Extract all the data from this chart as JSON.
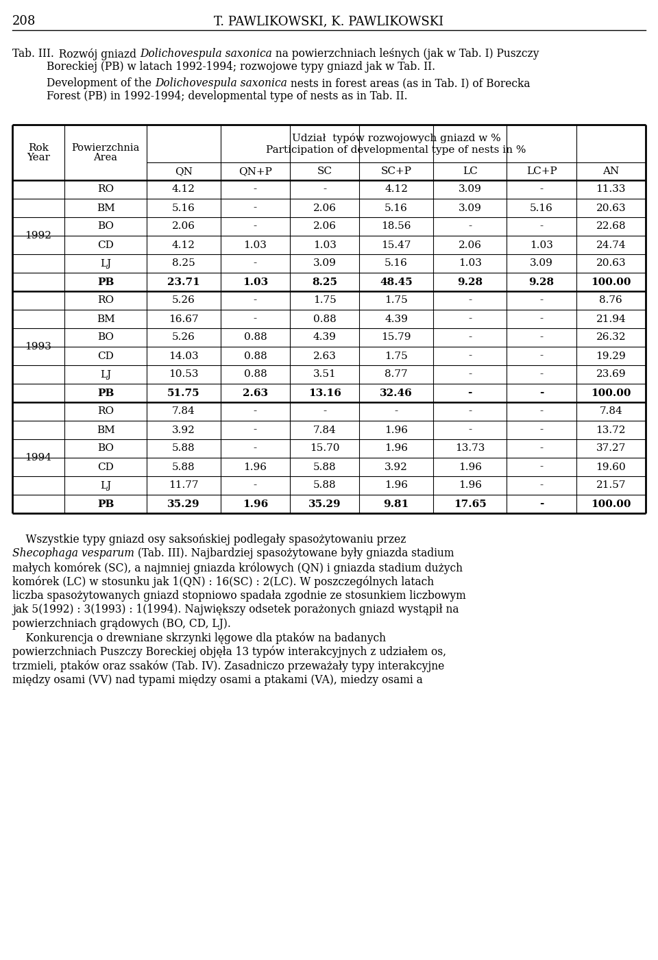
{
  "page_number": "208",
  "header": "T. PAWLIKOWSKI, K. PAWLIKOWSKI",
  "col_headers": [
    "QN",
    "QN+P",
    "SC",
    "SC+P",
    "LC",
    "LC+P",
    "AN"
  ],
  "years": [
    "1992",
    "1993",
    "1994"
  ],
  "areas": [
    "RO",
    "BM",
    "BO",
    "CD",
    "LJ",
    "PB"
  ],
  "data": {
    "1992": {
      "RO": [
        "4.12",
        "-",
        "-",
        "4.12",
        "3.09",
        "-",
        "11.33"
      ],
      "BM": [
        "5.16",
        "-",
        "2.06",
        "5.16",
        "3.09",
        "5.16",
        "20.63"
      ],
      "BO": [
        "2.06",
        "-",
        "2.06",
        "18.56",
        "-",
        "-",
        "22.68"
      ],
      "CD": [
        "4.12",
        "1.03",
        "1.03",
        "15.47",
        "2.06",
        "1.03",
        "24.74"
      ],
      "LJ": [
        "8.25",
        "-",
        "3.09",
        "5.16",
        "1.03",
        "3.09",
        "20.63"
      ],
      "PB": [
        "23.71",
        "1.03",
        "8.25",
        "48.45",
        "9.28",
        "9.28",
        "100.00"
      ]
    },
    "1993": {
      "RO": [
        "5.26",
        "-",
        "1.75",
        "1.75",
        "-",
        "-",
        "8.76"
      ],
      "BM": [
        "16.67",
        "-",
        "0.88",
        "4.39",
        "-",
        "-",
        "21.94"
      ],
      "BO": [
        "5.26",
        "0.88",
        "4.39",
        "15.79",
        "-",
        "-",
        "26.32"
      ],
      "CD": [
        "14.03",
        "0.88",
        "2.63",
        "1.75",
        "-",
        "-",
        "19.29"
      ],
      "LJ": [
        "10.53",
        "0.88",
        "3.51",
        "8.77",
        "-",
        "-",
        "23.69"
      ],
      "PB": [
        "51.75",
        "2.63",
        "13.16",
        "32.46",
        "-",
        "-",
        "100.00"
      ]
    },
    "1994": {
      "RO": [
        "7.84",
        "-",
        "-",
        "-",
        "-",
        "-",
        "7.84"
      ],
      "BM": [
        "3.92",
        "-",
        "7.84",
        "1.96",
        "-",
        "-",
        "13.72"
      ],
      "BO": [
        "5.88",
        "-",
        "15.70",
        "1.96",
        "13.73",
        "-",
        "37.27"
      ],
      "CD": [
        "5.88",
        "1.96",
        "5.88",
        "3.92",
        "1.96",
        "-",
        "19.60"
      ],
      "LJ": [
        "11.77",
        "-",
        "5.88",
        "1.96",
        "1.96",
        "-",
        "21.57"
      ],
      "PB": [
        "35.29",
        "1.96",
        "35.29",
        "9.81",
        "17.65",
        "-",
        "100.00"
      ]
    }
  },
  "bold_rows": [
    "PB"
  ],
  "background": "#ffffff",
  "text_color": "#000000"
}
